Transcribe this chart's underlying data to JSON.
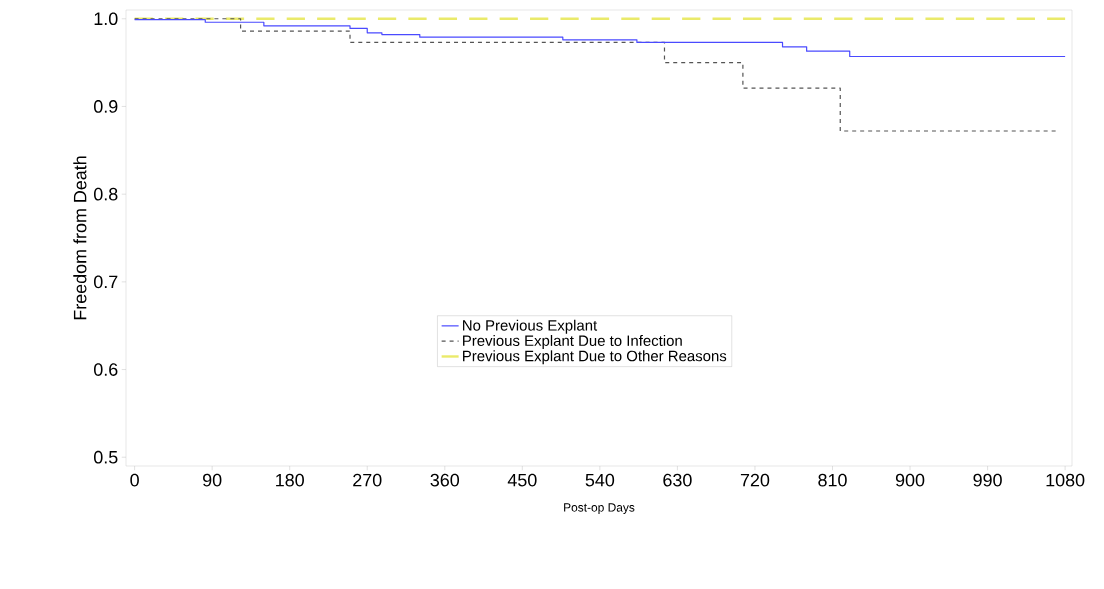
{
  "chart_data": {
    "type": "step",
    "xlabel": "Post-op Days",
    "ylabel": "Freedom from Death",
    "xlim": [
      -10,
      1088
    ],
    "ylim": [
      0.49,
      1.01
    ],
    "xticks": [
      0,
      90,
      180,
      270,
      360,
      450,
      540,
      630,
      720,
      810,
      900,
      990,
      1080
    ],
    "yticks": [
      {
        "value": 0.5,
        "label": "0.5"
      },
      {
        "value": 0.6,
        "label": "0.6"
      },
      {
        "value": 0.7,
        "label": "0.7"
      },
      {
        "value": 0.8,
        "label": "0.8"
      },
      {
        "value": 0.9,
        "label": "0.9"
      },
      {
        "value": 1.0,
        "label": "1.0"
      }
    ],
    "grid": false,
    "legend": "bottom right",
    "marker": "none",
    "series": [
      {
        "name": "No Previous Explant",
        "color": "#4a4aff",
        "line_style": "solid",
        "x": [
          0,
          82,
          150,
          250,
          270,
          287,
          331,
          497,
          583,
          752,
          780,
          830,
          1080
        ],
        "values": [
          0.999,
          0.996,
          0.992,
          0.989,
          0.984,
          0.982,
          0.979,
          0.976,
          0.973,
          0.968,
          0.963,
          0.957,
          0.957
        ]
      },
      {
        "name": "Previous Explant Due to Infection",
        "color": "#555555",
        "line_style": "dashed",
        "x": [
          0,
          123,
          250,
          615,
          706,
          819,
          1069
        ],
        "values": [
          1.0,
          0.986,
          0.973,
          0.95,
          0.921,
          0.872,
          0.872
        ]
      },
      {
        "name": "Previous Explant Due to Other Reasons",
        "color": "#eaea6a",
        "line_style": "longdash",
        "x": [
          0,
          1080
        ],
        "values": [
          1.0,
          1.0
        ]
      }
    ]
  }
}
